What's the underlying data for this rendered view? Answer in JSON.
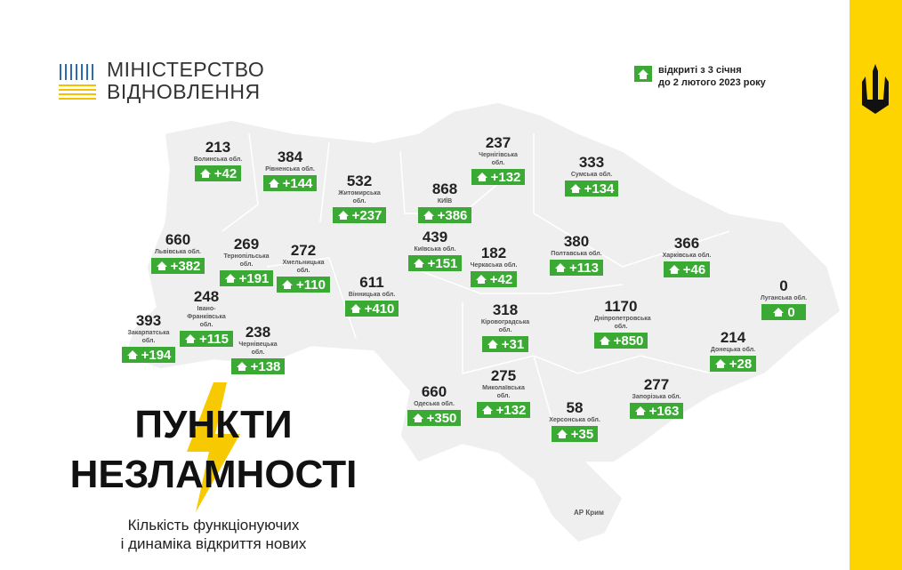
{
  "logo": {
    "line1": "МІНІСТЕРСТВО",
    "line2": "ВІДНОВЛЕННЯ"
  },
  "legend": {
    "line1": "відкриті з 3 січня",
    "line2": "до 2 лютого 2023 року"
  },
  "title": {
    "line1": "ПУНКТИ",
    "line2": "НЕЗЛАМНОСТІ"
  },
  "subtitle": {
    "line1": "Кількість функціонуючих",
    "line2": "і динаміка відкриття нових"
  },
  "crimea": "АР Крим",
  "regions": [
    {
      "name": "Волинська обл.",
      "total": "213",
      "added": "+42"
    },
    {
      "name": "Рівненська обл.",
      "total": "384",
      "added": "+144"
    },
    {
      "name": "Житомирська обл.",
      "total": "532",
      "added": "+237"
    },
    {
      "name": "КИЇВ",
      "total": "868",
      "added": "+386"
    },
    {
      "name": "Чернігівська  обл.",
      "total": "237",
      "added": "+132"
    },
    {
      "name": "Сумська обл.",
      "total": "333",
      "added": "+134"
    },
    {
      "name": "Львівська обл.",
      "total": "660",
      "added": "+382"
    },
    {
      "name": "Тернопільська обл.",
      "total": "269",
      "added": "+191"
    },
    {
      "name": "Хмельницька обл.",
      "total": "272",
      "added": "+110"
    },
    {
      "name": "Київська обл.",
      "total": "439",
      "added": "+151"
    },
    {
      "name": "Черкаська обл.",
      "total": "182",
      "added": "+42"
    },
    {
      "name": "Полтавська обл.",
      "total": "380",
      "added": "+113"
    },
    {
      "name": "Харківська обл.",
      "total": "366",
      "added": "+46"
    },
    {
      "name": "Луганська обл.",
      "total": "0",
      "added": "0"
    },
    {
      "name": "Вінницька обл.",
      "total": "611",
      "added": "+410"
    },
    {
      "name": "Івано-Франківська обл.",
      "total": "248",
      "added": "+115"
    },
    {
      "name": "Закарпатська обл.",
      "total": "393",
      "added": "+194"
    },
    {
      "name": "Чернівецька обл.",
      "total": "238",
      "added": "+138"
    },
    {
      "name": "Кіровоградська обл.",
      "total": "318",
      "added": "+31"
    },
    {
      "name": "Дніпропетровська обл.",
      "total": "1170",
      "added": "+850"
    },
    {
      "name": "Донецька обл.",
      "total": "214",
      "added": "+28"
    },
    {
      "name": "Одеська обл.",
      "total": "660",
      "added": "+350"
    },
    {
      "name": "Миколаївська обл.",
      "total": "275",
      "added": "+132"
    },
    {
      "name": "Херсонська обл.",
      "total": "58",
      "added": "+35"
    },
    {
      "name": "Запорізька обл.",
      "total": "277",
      "added": "+163"
    }
  ]
}
